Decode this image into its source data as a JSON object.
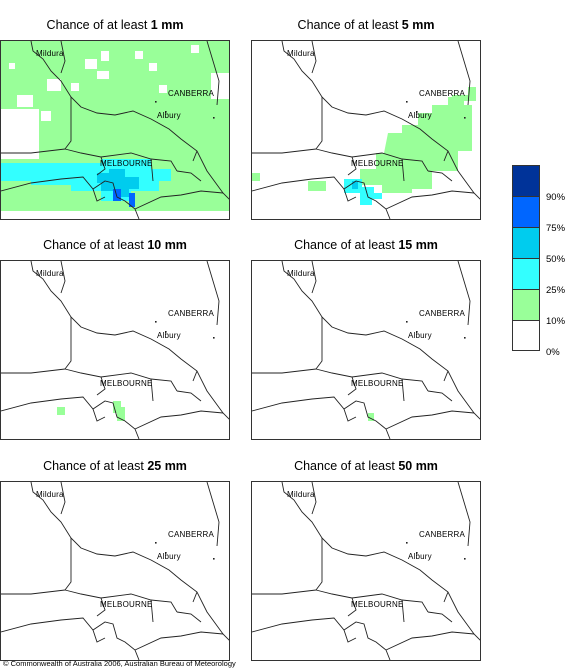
{
  "panels": [
    {
      "title_prefix": "Chance of at least ",
      "amount": "1 mm"
    },
    {
      "title_prefix": "Chance of at least ",
      "amount": "5 mm"
    },
    {
      "title_prefix": "Chance of at least ",
      "amount": "10 mm"
    },
    {
      "title_prefix": "Chance of at least ",
      "amount": "15 mm"
    },
    {
      "title_prefix": "Chance of at least ",
      "amount": "25 mm"
    },
    {
      "title_prefix": "Chance of at least ",
      "amount": "50 mm"
    }
  ],
  "places": {
    "mildura": "Mildura",
    "canberra": "CANBERRA",
    "albury": "Albury",
    "melbourne": "MELBOURNE"
  },
  "legend": {
    "labels": [
      "90%",
      "75%",
      "50%",
      "25%",
      "10%",
      "0%"
    ],
    "colors": [
      "#003399",
      "#0066ff",
      "#00ccee",
      "#33ffff",
      "#99ff99",
      "#ffffff"
    ]
  },
  "colors": {
    "green": "#99ff99",
    "cyan": "#33ffff",
    "blue": "#00ccee",
    "deep_blue": "#0066ff"
  },
  "footer": "© Commonwealth of Australia 2006, Australian Bureau of Meteorology"
}
